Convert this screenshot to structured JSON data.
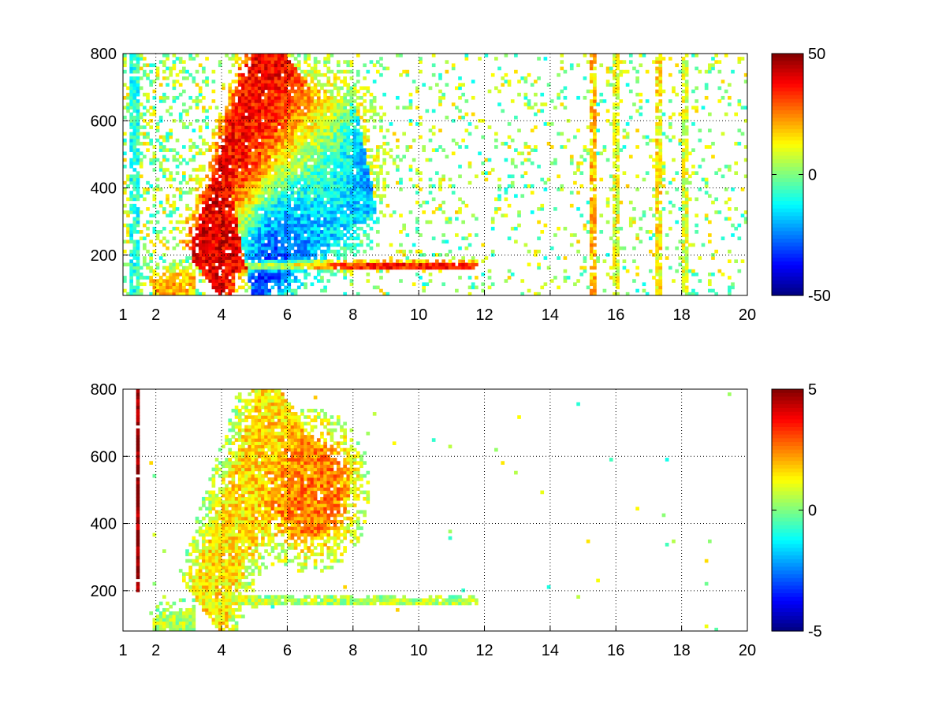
{
  "chart_data": [
    {
      "type": "heatmap",
      "title": "",
      "xlabel": "",
      "ylabel": "",
      "xlim": [
        1,
        20
      ],
      "ylim": [
        80,
        800
      ],
      "grid": true,
      "colormap": "jet",
      "x_ticks": [
        1,
        2,
        4,
        6,
        8,
        10,
        12,
        14,
        16,
        18,
        20
      ],
      "x_tick_labels": [
        "1",
        "2",
        "4",
        "6",
        "8",
        "10",
        "12",
        "14",
        "16",
        "18",
        "20"
      ],
      "y_ticks": [
        200,
        400,
        600,
        800
      ],
      "y_tick_labels": [
        "200",
        "400",
        "600",
        "800"
      ],
      "colorbar": {
        "min": -50,
        "max": 50,
        "ticks": [
          50,
          0,
          -50
        ],
        "tick_labels": [
          "50",
          "0",
          "-50"
        ]
      },
      "features": [
        {
          "kind": "streak",
          "from": [
            3.6,
            150
          ],
          "to": [
            5.7,
            800
          ],
          "value": 40,
          "width": 0.55
        },
        {
          "kind": "streak",
          "from": [
            3.6,
            170
          ],
          "to": [
            11.7,
            170
          ],
          "value": 35,
          "width": 0.04
        },
        {
          "kind": "streak",
          "from": [
            4.8,
            200
          ],
          "to": [
            8.3,
            480
          ],
          "value": -35,
          "width": 0.55
        },
        {
          "kind": "blob",
          "center": [
            6.7,
            500
          ],
          "spread": [
            1.2,
            150
          ],
          "value": 20
        },
        {
          "kind": "streak",
          "from": [
            1.9,
            85
          ],
          "to": [
            3.2,
            100
          ],
          "value": 20,
          "width": 0.2
        },
        {
          "kind": "band",
          "x": 1.35,
          "value": -10
        },
        {
          "kind": "band",
          "x": 15.3,
          "value": 20
        },
        {
          "kind": "band",
          "x": 16.0,
          "value": 10
        },
        {
          "kind": "band",
          "x": 17.3,
          "value": 15
        },
        {
          "kind": "band",
          "x": 18.1,
          "value": 10
        }
      ]
    },
    {
      "type": "heatmap",
      "title": "",
      "xlabel": "",
      "ylabel": "",
      "xlim": [
        1,
        20
      ],
      "ylim": [
        80,
        800
      ],
      "grid": true,
      "colormap": "jet",
      "x_ticks": [
        1,
        2,
        4,
        6,
        8,
        10,
        12,
        14,
        16,
        18,
        20
      ],
      "x_tick_labels": [
        "1",
        "2",
        "4",
        "6",
        "8",
        "10",
        "12",
        "14",
        "16",
        "18",
        "20"
      ],
      "y_ticks": [
        200,
        400,
        600,
        800
      ],
      "y_tick_labels": [
        "200",
        "400",
        "600",
        "800"
      ],
      "colorbar": {
        "min": -5,
        "max": 5,
        "ticks": [
          5,
          0,
          -5
        ],
        "tick_labels": [
          "5",
          "0",
          "-5"
        ]
      },
      "features": [
        {
          "kind": "streak",
          "from": [
            3.6,
            150
          ],
          "to": [
            5.7,
            780
          ],
          "value": 1.5,
          "width": 0.5
        },
        {
          "kind": "streak",
          "from": [
            3.6,
            170
          ],
          "to": [
            11.7,
            170
          ],
          "value": 0.5,
          "width": 0.04
        },
        {
          "kind": "blob",
          "center": [
            6.7,
            500
          ],
          "spread": [
            0.9,
            120
          ],
          "value": 2.5
        },
        {
          "kind": "streak",
          "from": [
            1.9,
            82
          ],
          "to": [
            3.2,
            95
          ],
          "value": 0.5,
          "width": 0.2
        },
        {
          "kind": "line",
          "x": 1.42,
          "y0": 200,
          "y1": 800,
          "value": 5
        }
      ]
    }
  ]
}
